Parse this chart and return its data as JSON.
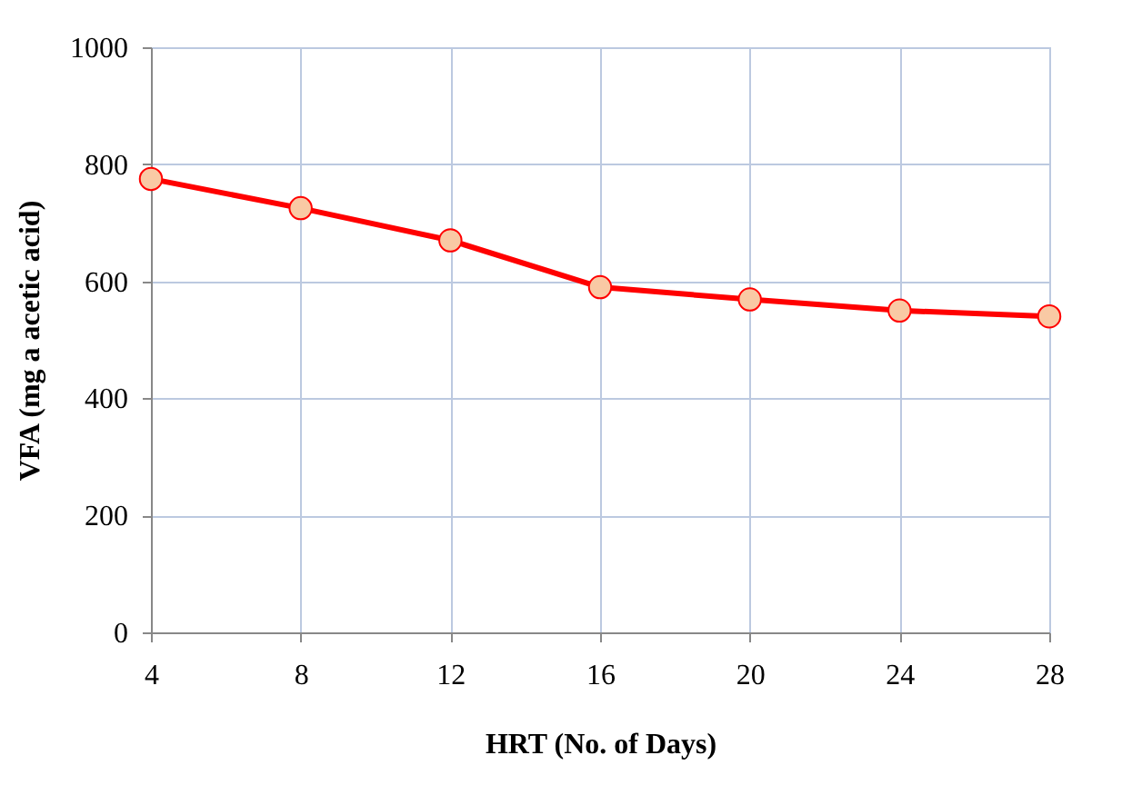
{
  "chart_data": {
    "type": "line",
    "xlabel": "HRT (No. of Days)",
    "ylabel": "VFA (mg a acetic acid)",
    "x": [
      4,
      8,
      12,
      16,
      20,
      24,
      28
    ],
    "series": [
      {
        "color": "#ff0000",
        "values": [
          775,
          725,
          670,
          590,
          569,
          550,
          540
        ]
      }
    ],
    "xlim": [
      4,
      28
    ],
    "xticks": [
      4,
      8,
      12,
      16,
      20,
      24,
      28
    ],
    "ylim": [
      0,
      1000
    ],
    "yticks": [
      0,
      200,
      400,
      600,
      800,
      1000
    ],
    "grid": true,
    "marker": "circle"
  }
}
